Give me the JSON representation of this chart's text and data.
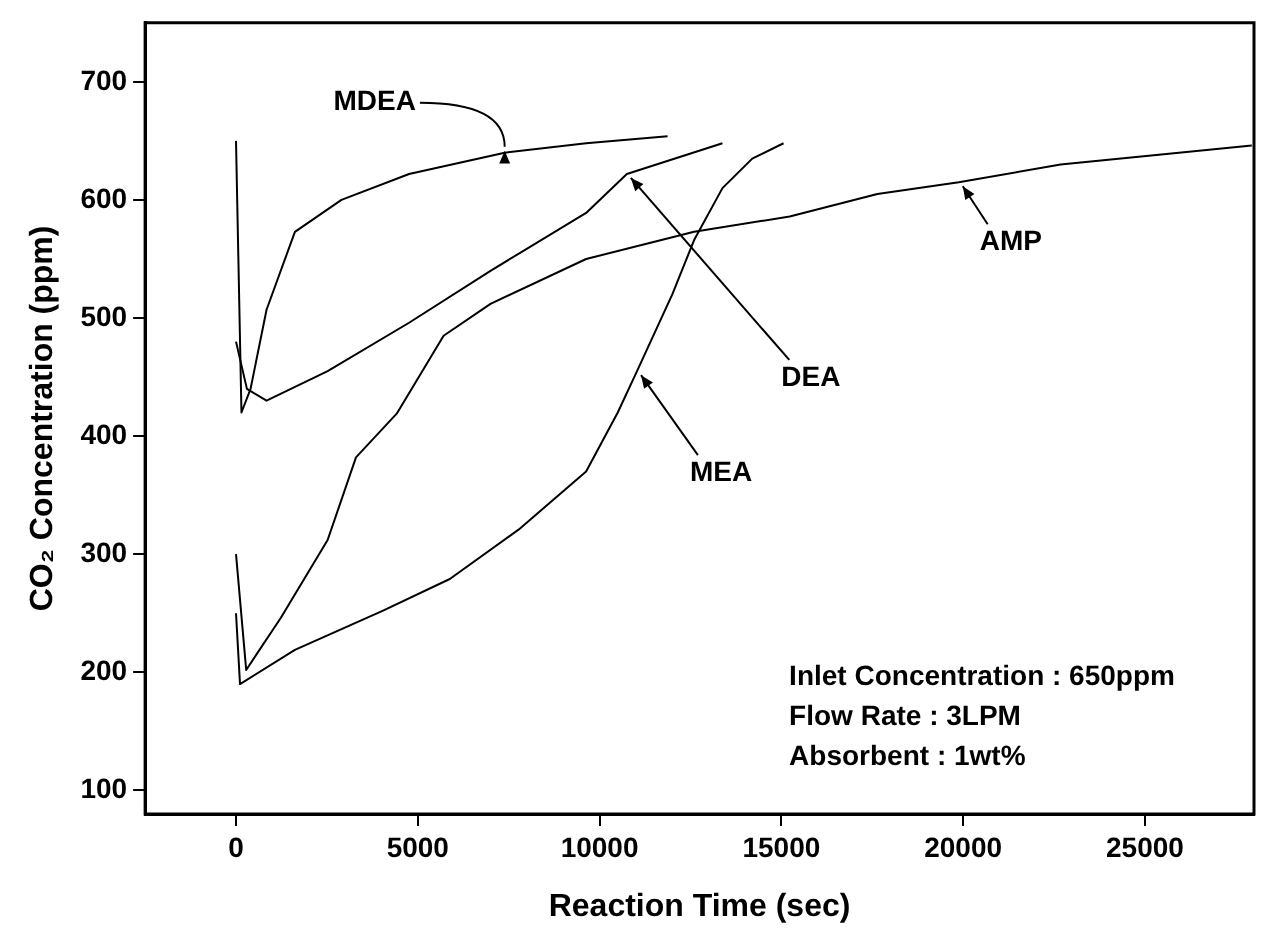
{
  "chart_data": {
    "type": "line",
    "xlabel": "Reaction Time (sec)",
    "ylabel": "CO₂ Concentration (ppm)",
    "xlim": [
      -2500,
      28000
    ],
    "xticks": [
      0,
      5000,
      10000,
      15000,
      20000,
      25000
    ],
    "ylim": [
      80,
      750
    ],
    "yticks": [
      100,
      200,
      300,
      400,
      500,
      600,
      700
    ],
    "grid": false,
    "marker": "none",
    "line_style": "solid",
    "annotations": [
      "Inlet Concentration : 650ppm",
      "Flow Rate : 3LPM",
      "Absorbent : 1wt%"
    ],
    "series": [
      {
        "name": "MDEA",
        "color": "#000000",
        "x": [
          0,
          150,
          400,
          840,
          1620,
          2900,
          4760,
          7390,
          9630,
          11870
        ],
        "values": [
          650,
          420,
          440,
          507,
          573,
          600,
          622,
          640,
          648,
          654
        ]
      },
      {
        "name": "DEA",
        "color": "#000000",
        "x": [
          0,
          300,
          840,
          2520,
          4760,
          7000,
          9630,
          10750,
          13380
        ],
        "values": [
          480,
          440,
          430,
          455,
          496,
          540,
          589,
          622,
          648
        ]
      },
      {
        "name": "AMP",
        "color": "#000000",
        "x": [
          0,
          280,
          1230,
          2520,
          3300,
          4420,
          5710,
          7000,
          9630,
          12600,
          15230,
          17640,
          19880,
          22680,
          27940
        ],
        "values": [
          300,
          202,
          246,
          312,
          382,
          419,
          485,
          512,
          550,
          573,
          586,
          605,
          615,
          630,
          646
        ]
      },
      {
        "name": "MEA",
        "color": "#000000",
        "x": [
          0,
          110,
          1620,
          4030,
          5880,
          7780,
          9630,
          10500,
          11030,
          12000,
          12600,
          13380,
          14200,
          15060
        ],
        "values": [
          250,
          190,
          219,
          252,
          279,
          321,
          370,
          420,
          455,
          520,
          566,
          610,
          635,
          648
        ]
      }
    ]
  }
}
